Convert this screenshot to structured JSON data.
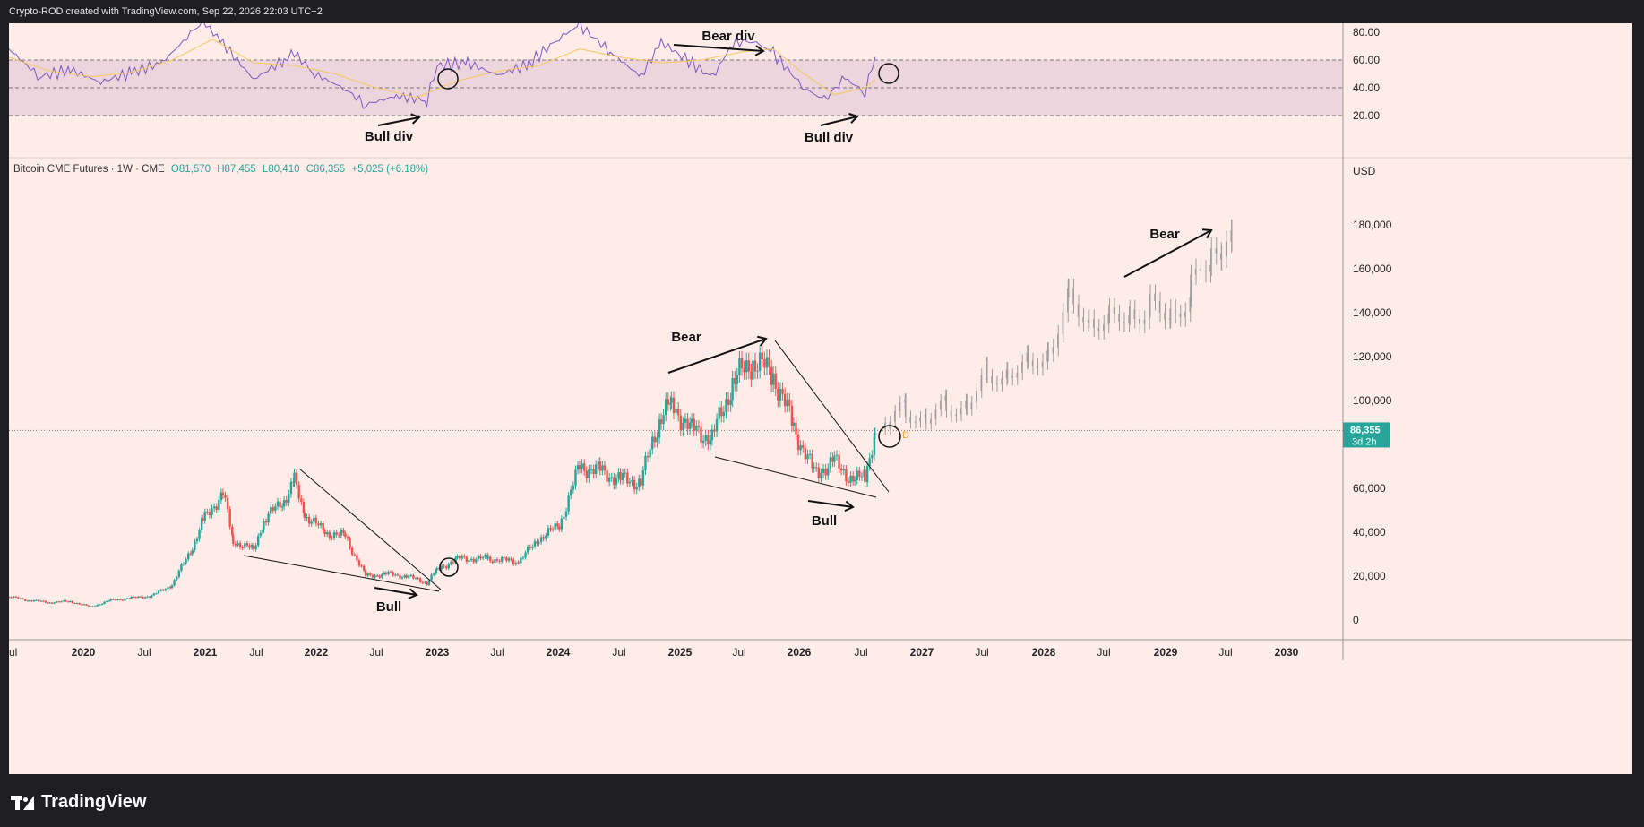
{
  "header": {
    "attribution": "Crypto-ROD created with TradingView.com, Sep 22, 2026 22:03 UTC+2"
  },
  "footer": {
    "brand": "TradingView"
  },
  "legend": {
    "symbol": "Bitcoin CME Futures · 1W · CME",
    "open": "O81,570",
    "high": "H87,455",
    "low": "L80,410",
    "close": "C86,355",
    "change": "+5,025 (+6.18%)"
  },
  "price_axis": {
    "currency": "USD",
    "last_price": "86,355",
    "countdown": "3d 2h"
  },
  "colors": {
    "up": "#26a69a",
    "down": "#ef5350",
    "projection": "#9e9e9e",
    "rsi": "#7e57c2",
    "rsi_ma": "#f6c85f",
    "background": "#fdece8",
    "rsi_band": "#ecd5dd"
  },
  "chart_data": [
    {
      "type": "line",
      "title": "",
      "panel": "RSI",
      "yticks": [
        "80.00",
        "60.00",
        "40.00",
        "20.00"
      ],
      "ylim": [
        10,
        93
      ],
      "levels": [
        70,
        50,
        30
      ],
      "annotations": [
        "Bear div",
        "Bull div",
        "Bull div"
      ],
      "series": [
        {
          "x": [
            "2019-07",
            "2019-10",
            "2020-01",
            "2020-04",
            "2020-07",
            "2020-10",
            "2021-01",
            "2021-02",
            "2021-04",
            "2021-07",
            "2021-10",
            "2021-11",
            "2022-01",
            "2022-04",
            "2022-06",
            "2022-09",
            "2022-12",
            "2023-01",
            "2023-04",
            "2023-07",
            "2023-10",
            "2024-01",
            "2024-03",
            "2024-06",
            "2024-09",
            "2024-11",
            "2025-01",
            "2025-04",
            "2025-06",
            "2025-08",
            "2025-10",
            "2026-01",
            "2026-03",
            "2026-05",
            "2026-07",
            "2026-08"
          ],
          "values": [
            68,
            48,
            53,
            44,
            51,
            58,
            80,
            88,
            72,
            46,
            60,
            65,
            50,
            39,
            28,
            34,
            31,
            56,
            58,
            49,
            57,
            76,
            85,
            66,
            48,
            73,
            63,
            47,
            72,
            74,
            65,
            40,
            31,
            47,
            37,
            63
          ]
        },
        {
          "x": [
            "2019-07",
            "2019-11",
            "2020-03",
            "2020-07",
            "2020-11",
            "2021-03",
            "2021-07",
            "2021-11",
            "2022-03",
            "2022-07",
            "2022-11",
            "2023-03",
            "2023-07",
            "2023-11",
            "2024-03",
            "2024-07",
            "2024-11",
            "2025-03",
            "2025-07",
            "2025-10",
            "2026-01",
            "2026-04",
            "2026-07",
            "2026-08"
          ],
          "values": [
            62,
            52,
            48,
            51,
            60,
            75,
            58,
            56,
            50,
            40,
            33,
            45,
            52,
            56,
            68,
            62,
            58,
            60,
            66,
            68,
            50,
            35,
            40,
            46
          ]
        }
      ]
    },
    {
      "type": "candlestick",
      "title": "",
      "panel": "price",
      "ylabel": "USD",
      "yticks": [
        "180,000",
        "160,000",
        "140,000",
        "120,000",
        "100,000",
        "60,000",
        "40,000",
        "20,000",
        "0"
      ],
      "ylim": [
        -8000,
        208000
      ],
      "xticks": [
        "ul",
        "2020",
        "Jul",
        "2021",
        "Jul",
        "2022",
        "Jul",
        "2023",
        "Jul",
        "2024",
        "Jul",
        "2025",
        "Jul",
        "2026",
        "Jul",
        "2027",
        "Jul",
        "2028",
        "Jul",
        "2029",
        "Jul",
        "2030"
      ],
      "annotations": [
        "Bear",
        "Bull",
        "Bear",
        "Bull",
        "Bear"
      ],
      "series": [
        {
          "name": "",
          "x": [
            "2019-07",
            "2019-09",
            "2019-11",
            "2020-01",
            "2020-03",
            "2020-05",
            "2020-07",
            "2020-09",
            "2020-11",
            "2021-01",
            "2021-02",
            "2021-04",
            "2021-05",
            "2021-07",
            "2021-08",
            "2021-10",
            "2021-11",
            "2021-12",
            "2022-02",
            "2022-04",
            "2022-06",
            "2022-08",
            "2022-10",
            "2022-12",
            "2023-01",
            "2023-03",
            "2023-06",
            "2023-09",
            "2023-11",
            "2024-01",
            "2024-03",
            "2024-05",
            "2024-07",
            "2024-09",
            "2024-11",
            "2024-12",
            "2025-02",
            "2025-04",
            "2025-06",
            "2025-08",
            "2025-10",
            "2025-12",
            "2026-02",
            "2026-04",
            "2026-06",
            "2026-07",
            "2026-08"
          ],
          "close": [
            10500,
            9000,
            8000,
            8500,
            6000,
            9000,
            10000,
            11000,
            16000,
            33000,
            45000,
            58000,
            36000,
            32000,
            45000,
            55000,
            63000,
            48000,
            40000,
            38000,
            20000,
            21000,
            20000,
            17000,
            23000,
            28000,
            28000,
            26500,
            37000,
            43000,
            70000,
            68000,
            64000,
            63000,
            94000,
            98000,
            87000,
            83000,
            108000,
            118000,
            112000,
            88000,
            67000,
            72000,
            63000,
            66000,
            86355
          ]
        },
        {
          "name": "",
          "x": [
            "2026-09",
            "2026-11",
            "2027-01",
            "2027-03",
            "2027-05",
            "2027-07",
            "2027-09",
            "2027-11",
            "2028-01",
            "2028-03",
            "2028-05",
            "2028-07",
            "2028-09",
            "2028-11",
            "2029-01",
            "2029-03",
            "2029-05",
            "2029-06",
            "2029-07"
          ],
          "close": [
            90000,
            95000,
            93000,
            96000,
            100000,
            110000,
            115000,
            115000,
            125000,
            145000,
            140000,
            135000,
            143000,
            140000,
            142000,
            148000,
            168000,
            172000,
            168000
          ]
        }
      ]
    }
  ]
}
